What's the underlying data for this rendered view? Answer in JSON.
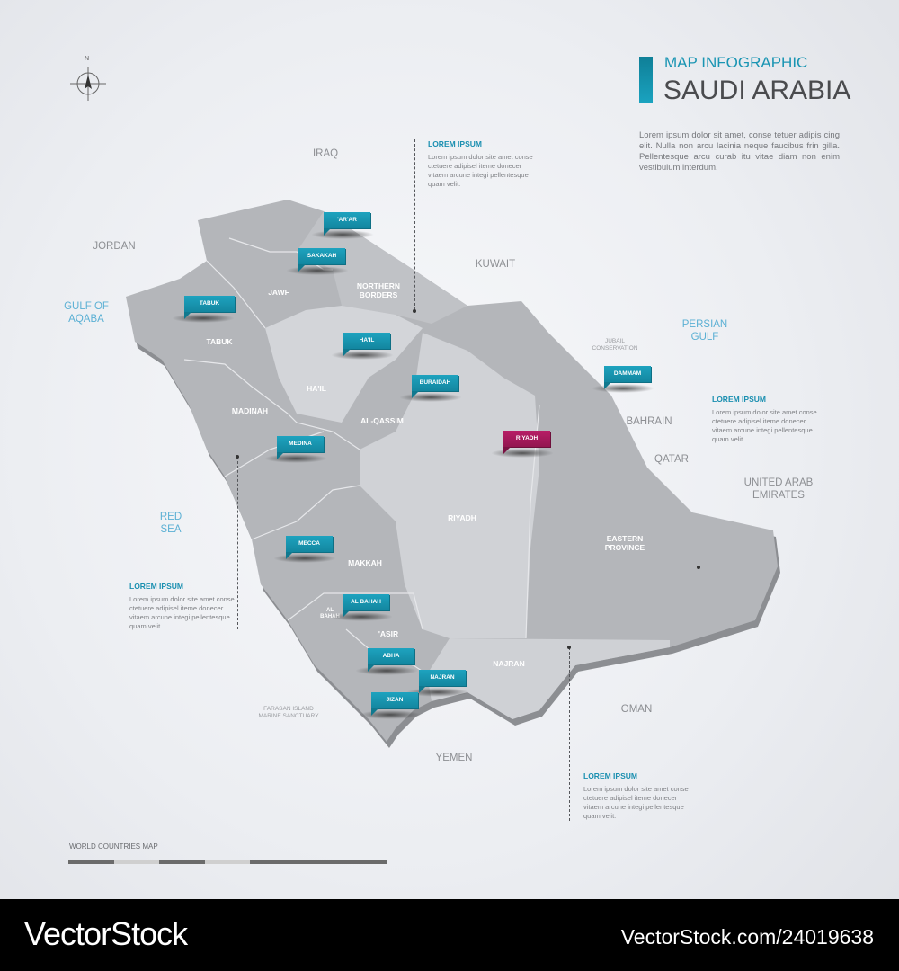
{
  "header": {
    "subtitle": "MAP INFOGRAPHIC",
    "title": "SAUDI ARABIA",
    "description": "Lorem ipsum dolor sit amet, conse tetuer adipis cing elit. Nulla non arcu lacinia neque faucibus frin gilla. Pellentesque arcu curab itu vitae diam non enim vestibulum interdum.",
    "accent_color": "#1a9bb6"
  },
  "compass": {
    "north": "N",
    "icon": "compass-icon"
  },
  "countries": {
    "iraq": "IRAQ",
    "jordan": "JORDAN",
    "kuwait": "KUWAIT",
    "bahrain": "BAHRAIN",
    "qatar": "QATAR",
    "uae": "UNITED ARAB EMIRATES",
    "oman": "OMAN",
    "yemen": "YEMEN"
  },
  "seas": {
    "aqaba": "GULF OF AQABA",
    "persian_gulf": "PERSIAN GULF",
    "red_sea": "RED SEA"
  },
  "places": {
    "jubail": "JUBAIL CONSERVATION",
    "farasan": "FARASAN ISLAND MARINE SANCTUARY"
  },
  "regions": {
    "jawf": "JAWF",
    "northern_borders": "NORTHERN BORDERS",
    "tabuk": "TABUK",
    "hail": "HA'IL",
    "madinah": "MADINAH",
    "qassim": "AL-QASSIM",
    "riyadh": "RIYADH",
    "eastern": "EASTERN PROVINCE",
    "makkah": "MAKKAH",
    "al_bahah": "AL BAHAH",
    "asir": "'ASIR",
    "najran": "NAJRAN"
  },
  "cities": {
    "arar": "'AR'AR",
    "sakakah": "SAKAKAH",
    "tabuk": "TABUK",
    "hail": "HA'IL",
    "buraidah": "BURAIDAH",
    "riyadh": "RIYADH",
    "dammam": "DAMMAM",
    "medina": "MEDINA",
    "mecca": "MECCA",
    "al_bahah": "AL BAHAH",
    "abha": "ABHA",
    "najran": "NAJRAN",
    "jizan": "JIZAN"
  },
  "colors": {
    "city_pin": "#1a9bb6",
    "capital_pin": "#a6195a",
    "region_fill": "#b7b9bd",
    "region_light": "#d2d4d8"
  },
  "info_blocks": [
    {
      "heading": "LOREM IPSUM",
      "text": "Lorem ipsum dolor site amet conse ctetuere adipisel iteme donecer vitaem arcune integi pellentesque quam velit."
    },
    {
      "heading": "LOREM IPSUM",
      "text": "Lorem ipsum dolor site amet conse ctetuere adipisel iteme donecer vitaem arcune integi pellentesque quam velit."
    },
    {
      "heading": "LOREM IPSUM",
      "text": "Lorem ipsum dolor site amet conse ctetuere adipisel iteme donecer vitaem arcune integi pellentesque quam velit."
    },
    {
      "heading": "LOREM IPSUM",
      "text": "Lorem ipsum dolor site amet conse ctetuere adipisel iteme donecer vitaem arcune integi pellentesque quam velit."
    }
  ],
  "scale": {
    "label": "WORLD COUNTRIES MAP"
  },
  "watermark": {
    "brand": "VectorStock",
    "id": "VectorStock.com/24019638"
  }
}
